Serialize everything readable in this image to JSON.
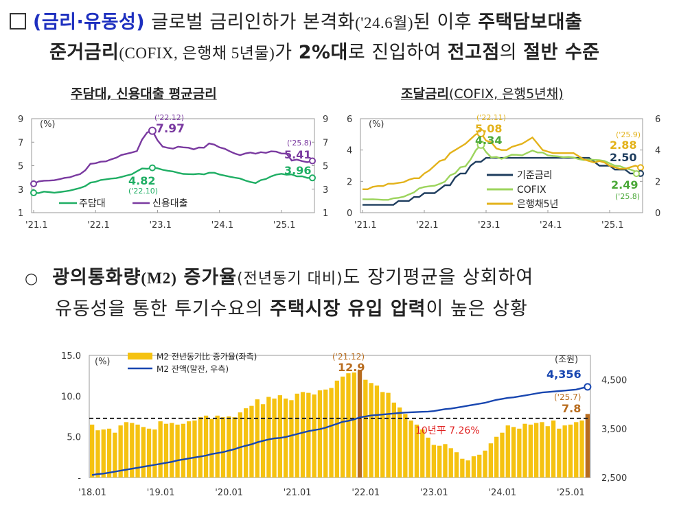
{
  "heading": {
    "checkbox_char": "",
    "part1_blue": "(금리·유동성)",
    "part2": " 글로벌 금리인하가 본격화",
    "part3_small": "('24.6월)",
    "part4": "된 이후 ",
    "part5_bold": "주택담보대출",
    "line2_bold1": "준거금리",
    "line2_small": "(COFIX, 은행채 5년물)",
    "line2_mid": "가 ",
    "line2_bold2": "2%대",
    "line2_mid2": "로 진입하여 ",
    "line2_bold3": "전고점",
    "line2_mid3": "의 ",
    "line2_bold4": "절반 수준"
  },
  "paragraph": {
    "bullet": "○",
    "l1_bold1": "광의통화량",
    "l1_small": "(M2)",
    "l1_sp": " ",
    "l1_bold2": "증가율",
    "l1_note": "(전년동기 대비)",
    "l1_rest": "도 장기평균을 상회하여",
    "l2_a": "유동성을 통한 투기수요의 ",
    "l2_bold": "주택시장 유입 압력",
    "l2_b": "이 높은 상황"
  },
  "colors": {
    "mortgage": "#1fae64",
    "credit": "#7a3aa0",
    "base": "#1e3d5e",
    "cofix": "#9cd45c",
    "bond": "#e3b21a",
    "m2bar": "#f5c211",
    "m2highlight": "#b86c1e",
    "m2line": "#1846b0",
    "avg": "#222222",
    "avgText": "#e02020"
  },
  "chart_data": [
    {
      "type": "line",
      "title": "주담대, 신용대출 평균금리",
      "unit": "(%)",
      "ylim": [
        1,
        9
      ],
      "yticks": [
        "1",
        "3",
        "5",
        "7",
        "9"
      ],
      "xticks": [
        "'21.1",
        "'22.1",
        "'23.1",
        "'24.1",
        "'25.1"
      ],
      "series": [
        {
          "name": "주담대",
          "values": [
            2.69,
            2.67,
            2.79,
            2.75,
            2.7,
            2.75,
            2.81,
            2.88,
            2.99,
            3.1,
            3.26,
            3.56,
            3.63,
            3.78,
            3.84,
            3.9,
            3.94,
            4.04,
            4.16,
            4.27,
            4.52,
            4.76,
            4.74,
            4.82,
            4.78,
            4.65,
            4.57,
            4.51,
            4.39,
            4.3,
            4.28,
            4.27,
            4.31,
            4.26,
            4.4,
            4.4,
            4.25,
            4.16,
            4.06,
            3.98,
            3.91,
            3.74,
            3.61,
            3.52,
            3.77,
            3.87,
            4.09,
            4.24,
            4.31,
            4.23,
            4.26,
            4.09,
            4.1,
            3.96,
            3.96
          ]
        },
        {
          "name": "신용대출",
          "values": [
            3.46,
            3.66,
            3.72,
            3.73,
            3.76,
            3.85,
            3.96,
            4.01,
            4.16,
            4.28,
            4.61,
            5.16,
            5.21,
            5.34,
            5.37,
            5.54,
            5.68,
            5.91,
            6.01,
            6.12,
            6.24,
            7.22,
            7.83,
            7.97,
            7.16,
            6.62,
            6.52,
            6.45,
            6.62,
            6.56,
            6.53,
            6.39,
            6.55,
            6.53,
            6.89,
            6.79,
            6.56,
            6.44,
            6.22,
            6.03,
            5.9,
            6.04,
            6.12,
            6.02,
            6.15,
            6.09,
            6.22,
            6.19,
            6.04,
            6.03,
            5.44,
            5.52,
            5.39,
            5.3,
            5.41
          ]
        }
      ],
      "annotations": [
        {
          "period": "('22.12)",
          "value": "7.97"
        },
        {
          "period": "('25.8)",
          "value": "5.41"
        },
        {
          "period": "('22.10)",
          "value": "4.82"
        },
        {
          "value": "3.96"
        }
      ],
      "legend": [
        "주담대",
        "신용대출"
      ]
    },
    {
      "type": "line",
      "title": "조달금리",
      "title_note": "(COFIX, 은행5년채)",
      "unit": "(%)",
      "ylim": [
        0,
        6
      ],
      "yticks": [
        "0",
        "2",
        "4",
        "6"
      ],
      "xticks": [
        "'21.1",
        "'22.1",
        "'23.1",
        "'24.1",
        "'25.1"
      ],
      "series": [
        {
          "name": "기준금리",
          "values": [
            0.5,
            0.5,
            0.5,
            0.5,
            0.5,
            0.5,
            0.5,
            0.75,
            0.75,
            0.75,
            1.0,
            1.0,
            1.25,
            1.25,
            1.25,
            1.5,
            1.75,
            1.75,
            2.25,
            2.5,
            2.5,
            3.0,
            3.25,
            3.25,
            3.5,
            3.5,
            3.5,
            3.5,
            3.5,
            3.5,
            3.5,
            3.5,
            3.5,
            3.5,
            3.5,
            3.5,
            3.5,
            3.5,
            3.5,
            3.5,
            3.5,
            3.5,
            3.5,
            3.5,
            3.5,
            3.25,
            3.0,
            3.0,
            3.0,
            2.75,
            2.75,
            2.75,
            2.5,
            2.5,
            2.5
          ]
        },
        {
          "name": "COFIX",
          "values": [
            0.86,
            0.85,
            0.86,
            0.84,
            0.82,
            0.82,
            0.92,
            0.95,
            1.02,
            1.16,
            1.29,
            1.55,
            1.64,
            1.69,
            1.72,
            1.84,
            1.98,
            2.38,
            2.52,
            2.9,
            2.96,
            3.4,
            3.98,
            4.34,
            3.87,
            3.53,
            3.56,
            3.44,
            3.56,
            3.7,
            3.69,
            3.66,
            3.82,
            3.97,
            3.84,
            3.84,
            3.66,
            3.62,
            3.59,
            3.54,
            3.56,
            3.52,
            3.42,
            3.36,
            3.4,
            3.37,
            3.35,
            3.3,
            3.15,
            3.0,
            2.97,
            2.84,
            2.76,
            2.63,
            2.49
          ]
        },
        {
          "name": "은행채5년",
          "values": [
            1.5,
            1.5,
            1.65,
            1.7,
            1.7,
            1.85,
            1.85,
            1.9,
            1.95,
            2.1,
            2.2,
            2.2,
            2.5,
            2.7,
            3.0,
            3.3,
            3.4,
            3.8,
            4.0,
            4.2,
            4.4,
            4.7,
            5.0,
            5.08,
            4.6,
            4.5,
            4.1,
            4.0,
            4.0,
            4.2,
            4.3,
            4.4,
            4.6,
            4.8,
            4.4,
            4.0,
            3.9,
            3.8,
            3.8,
            3.8,
            3.8,
            3.8,
            3.6,
            3.4,
            3.3,
            3.2,
            3.3,
            3.2,
            3.0,
            2.9,
            2.8,
            2.8,
            2.9,
            3.0,
            2.88
          ]
        }
      ],
      "annotations": [
        {
          "period": "('22.11)",
          "value": "5.08"
        },
        {
          "value": "4.34"
        },
        {
          "period": "('25.9)",
          "value": "2.88"
        },
        {
          "value": "2.50"
        },
        {
          "period": "('25.8)",
          "value": "2.49"
        }
      ],
      "legend": [
        "기준금리",
        "COFIX",
        "은행채5년"
      ]
    },
    {
      "type": "bar+line",
      "unit_left": "(%)",
      "unit_right": "(조원)",
      "ylim_left": [
        0,
        15
      ],
      "ylim_right": [
        2500,
        5000
      ],
      "yticks_left": [
        "-",
        "5.0",
        "10.0",
        "15.0"
      ],
      "yticks_right": [
        "2,500",
        "3,500",
        "4,500"
      ],
      "xticks": [
        "'18.01",
        "'19.01",
        "'20.01",
        "'21.01",
        "'22.01",
        "'23.01",
        "'24.01",
        "'25.01"
      ],
      "legend": [
        "M2 전년동기比 증가율(좌측)",
        "M2 잔액(말잔, 우측)"
      ],
      "avg_label": "10년平 7.26%",
      "avg_value": 7.26,
      "bar_series": {
        "name": "M2 전년동기比 증가율",
        "values": [
          6.5,
          5.8,
          5.9,
          6.0,
          5.5,
          6.4,
          6.8,
          6.7,
          6.5,
          6.2,
          6.0,
          5.9,
          6.9,
          6.6,
          6.7,
          6.5,
          6.6,
          6.9,
          7.0,
          7.4,
          7.6,
          7.2,
          7.6,
          7.4,
          7.5,
          7.4,
          8.0,
          8.5,
          8.8,
          9.6,
          9.0,
          9.9,
          9.7,
          10.1,
          9.7,
          9.5,
          10.3,
          10.5,
          10.4,
          10.2,
          10.7,
          10.8,
          11.0,
          11.9,
          12.4,
          12.8,
          12.9,
          13.2,
          12.0,
          11.6,
          11.3,
          10.5,
          10.4,
          9.2,
          8.6,
          7.8,
          7.0,
          6.5,
          5.9,
          4.9,
          4.0,
          3.9,
          4.1,
          3.6,
          3.1,
          2.3,
          2.1,
          2.6,
          2.8,
          3.3,
          4.2,
          5.0,
          5.5,
          6.4,
          6.2,
          6.0,
          6.6,
          6.5,
          6.7,
          6.8,
          6.3,
          7.0,
          6.0,
          6.4,
          6.5,
          6.8,
          7.0,
          7.8
        ]
      },
      "line_series": {
        "name": "M2 잔액",
        "values": [
          2550,
          2570,
          2580,
          2600,
          2620,
          2640,
          2660,
          2680,
          2700,
          2720,
          2740,
          2760,
          2780,
          2800,
          2820,
          2850,
          2870,
          2890,
          2910,
          2930,
          2950,
          2980,
          3000,
          3020,
          3050,
          3080,
          3120,
          3150,
          3180,
          3220,
          3250,
          3280,
          3300,
          3310,
          3330,
          3360,
          3390,
          3420,
          3450,
          3470,
          3490,
          3520,
          3560,
          3600,
          3640,
          3660,
          3690,
          3730,
          3750,
          3770,
          3780,
          3790,
          3800,
          3810,
          3820,
          3830,
          3835,
          3840,
          3845,
          3850,
          3860,
          3880,
          3900,
          3910,
          3930,
          3950,
          3970,
          3990,
          4010,
          4030,
          4060,
          4090,
          4110,
          4130,
          4140,
          4160,
          4180,
          4200,
          4220,
          4240,
          4250,
          4260,
          4270,
          4280,
          4290,
          4300,
          4330,
          4356
        ]
      },
      "annotations": [
        {
          "period": "('21.12)",
          "value": "12.9"
        },
        {
          "value": "4,356"
        },
        {
          "period": "('25.7)",
          "value": "7.8"
        }
      ]
    }
  ]
}
